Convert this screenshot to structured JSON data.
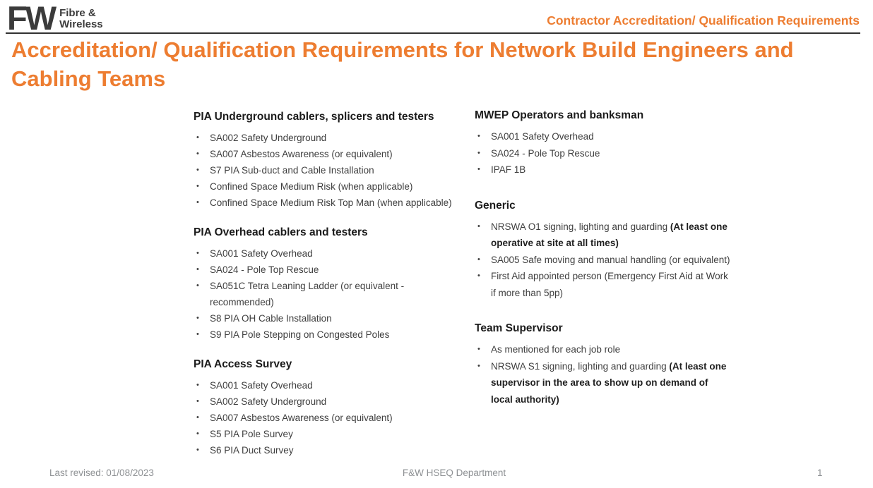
{
  "colors": {
    "accent": "#ED7D31",
    "ink": "#1b1b1b",
    "body": "#3f3f3f",
    "muted": "#8d9093",
    "logo": "#3b3b3b"
  },
  "logo": {
    "mark": "FW",
    "line1": "Fibre &",
    "line2": "Wireless"
  },
  "header": {
    "eyebrow": "Contractor Accreditation/ Qualification Requirements"
  },
  "title": "Accreditation/ Qualification Requirements for Network Build Engineers and Cabling Teams",
  "columns": [
    {
      "sections": [
        {
          "title": "PIA Underground cablers, splicers and testers",
          "items": [
            [
              {
                "t": "SA002 Safety Underground"
              }
            ],
            [
              {
                "t": "SA007 Asbestos Awareness (or equivalent)"
              }
            ],
            [
              {
                "t": "S7 PIA Sub-duct and Cable Installation"
              }
            ],
            [
              {
                "t": "Confined Space Medium Risk (when applicable)"
              }
            ],
            [
              {
                "t": "Confined Space Medium Risk Top Man (when applicable)"
              }
            ]
          ]
        },
        {
          "title": "PIA Overhead cablers and testers",
          "items": [
            [
              {
                "t": "SA001 Safety Overhead"
              }
            ],
            [
              {
                "t": "SA024 - Pole Top Rescue"
              }
            ],
            [
              {
                "t": "SA051C Tetra Leaning Ladder (or equivalent - recommended)"
              }
            ],
            [
              {
                "t": "S8 PIA OH Cable Installation"
              }
            ],
            [
              {
                "t": "S9 PIA Pole Stepping on Congested Poles"
              }
            ]
          ]
        },
        {
          "title": "PIA Access Survey",
          "items": [
            [
              {
                "t": "SA001 Safety Overhead"
              }
            ],
            [
              {
                "t": "SA002 Safety Underground"
              }
            ],
            [
              {
                "t": "SA007 Asbestos Awareness (or equivalent)"
              }
            ],
            [
              {
                "t": "S5 PIA Pole Survey"
              }
            ],
            [
              {
                "t": "S6 PIA Duct Survey"
              }
            ]
          ]
        }
      ]
    },
    {
      "sections": [
        {
          "title": "MWEP Operators and banksman",
          "items": [
            [
              {
                "t": "SA001 Safety Overhead"
              }
            ],
            [
              {
                "t": "SA024 - Pole Top Rescue"
              }
            ],
            [
              {
                "t": "IPAF 1B"
              }
            ]
          ]
        },
        {
          "title": "Generic",
          "items": [
            [
              {
                "t": "NRSWA O1 signing, lighting and guarding "
              },
              {
                "t": "(At least one operative at site at all times)",
                "b": true
              }
            ],
            [
              {
                "t": "SA005 Safe moving and manual handling (or equivalent)"
              }
            ],
            [
              {
                "t": "First Aid appointed person (Emergency First Aid at Work if more than 5pp)"
              }
            ]
          ]
        },
        {
          "title": "Team Supervisor",
          "items": [
            [
              {
                "t": "As mentioned for each job role"
              }
            ],
            [
              {
                "t": "NRSWA S1 signing, lighting and guarding "
              },
              {
                "t": "(At least one supervisor in the area to show up on demand of local authority)",
                "b": true
              }
            ]
          ]
        }
      ]
    }
  ],
  "footer": {
    "left": "Last revised: 01/08/2023",
    "center": "F&W HSEQ Department",
    "page": "1"
  }
}
